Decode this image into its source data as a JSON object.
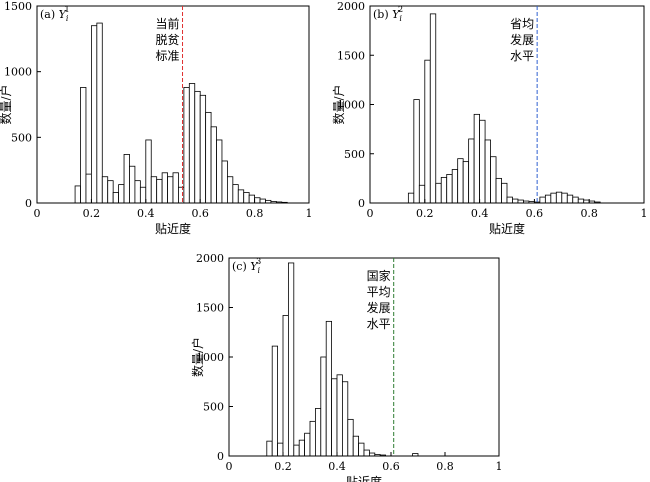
{
  "chart_data": [
    {
      "type": "bar",
      "panel": "(a)",
      "title": "Y_i^1",
      "title_var": "Y",
      "title_sub": "i",
      "title_sup": "1",
      "xlabel": "贴近度",
      "ylabel": "数量/户",
      "xlim": [
        0,
        1
      ],
      "ylim": [
        0,
        1500
      ],
      "xticks": [
        0,
        0.2,
        0.4,
        0.6,
        0.8,
        1
      ],
      "xtick_labels": [
        "0",
        "0.2",
        "0.4",
        "0.6",
        "0.8",
        "1"
      ],
      "yticks": [
        0,
        500,
        1000,
        1500
      ],
      "ytick_labels": [
        "0",
        "500",
        "1000",
        "1500"
      ],
      "bin_width": 0.02,
      "bins": [
        {
          "x": 0.15,
          "count": 130
        },
        {
          "x": 0.17,
          "count": 880
        },
        {
          "x": 0.19,
          "count": 220
        },
        {
          "x": 0.21,
          "count": 1350
        },
        {
          "x": 0.23,
          "count": 1370
        },
        {
          "x": 0.25,
          "count": 200
        },
        {
          "x": 0.27,
          "count": 170
        },
        {
          "x": 0.29,
          "count": 80
        },
        {
          "x": 0.31,
          "count": 140
        },
        {
          "x": 0.33,
          "count": 370
        },
        {
          "x": 0.35,
          "count": 280
        },
        {
          "x": 0.37,
          "count": 170
        },
        {
          "x": 0.39,
          "count": 120
        },
        {
          "x": 0.41,
          "count": 480
        },
        {
          "x": 0.43,
          "count": 200
        },
        {
          "x": 0.45,
          "count": 180
        },
        {
          "x": 0.47,
          "count": 230
        },
        {
          "x": 0.49,
          "count": 200
        },
        {
          "x": 0.51,
          "count": 230
        },
        {
          "x": 0.53,
          "count": 120
        },
        {
          "x": 0.55,
          "count": 880
        },
        {
          "x": 0.57,
          "count": 910
        },
        {
          "x": 0.59,
          "count": 850
        },
        {
          "x": 0.61,
          "count": 820
        },
        {
          "x": 0.63,
          "count": 690
        },
        {
          "x": 0.65,
          "count": 580
        },
        {
          "x": 0.67,
          "count": 480
        },
        {
          "x": 0.69,
          "count": 320
        },
        {
          "x": 0.71,
          "count": 200
        },
        {
          "x": 0.73,
          "count": 140
        },
        {
          "x": 0.75,
          "count": 100
        },
        {
          "x": 0.77,
          "count": 80
        },
        {
          "x": 0.79,
          "count": 60
        },
        {
          "x": 0.81,
          "count": 40
        },
        {
          "x": 0.83,
          "count": 30
        },
        {
          "x": 0.85,
          "count": 20
        },
        {
          "x": 0.87,
          "count": 12
        },
        {
          "x": 0.89,
          "count": 8
        },
        {
          "x": 0.91,
          "count": 5
        }
      ],
      "reference_line": {
        "x": 0.535,
        "color": "#e03030",
        "label_lines": [
          "当前",
          "脱贫",
          "标准"
        ]
      }
    },
    {
      "type": "bar",
      "panel": "(b)",
      "title": "Y_i^2",
      "title_var": "Y",
      "title_sub": "i",
      "title_sup": "2",
      "xlabel": "贴近度",
      "ylabel": "数量/户",
      "xlim": [
        0,
        1
      ],
      "ylim": [
        0,
        2000
      ],
      "xticks": [
        0,
        0.2,
        0.4,
        0.6,
        0.8,
        1
      ],
      "xtick_labels": [
        "0",
        "0.2",
        "0.4",
        "0.6",
        "0.8",
        "1"
      ],
      "yticks": [
        0,
        500,
        1000,
        1500,
        2000
      ],
      "ytick_labels": [
        "0",
        "500",
        "1000",
        "1500",
        "2000"
      ],
      "bin_width": 0.02,
      "bins": [
        {
          "x": 0.15,
          "count": 100
        },
        {
          "x": 0.17,
          "count": 1050
        },
        {
          "x": 0.19,
          "count": 180
        },
        {
          "x": 0.21,
          "count": 1450
        },
        {
          "x": 0.23,
          "count": 1920
        },
        {
          "x": 0.25,
          "count": 200
        },
        {
          "x": 0.27,
          "count": 260
        },
        {
          "x": 0.29,
          "count": 290
        },
        {
          "x": 0.31,
          "count": 340
        },
        {
          "x": 0.33,
          "count": 450
        },
        {
          "x": 0.35,
          "count": 420
        },
        {
          "x": 0.37,
          "count": 650
        },
        {
          "x": 0.39,
          "count": 900
        },
        {
          "x": 0.41,
          "count": 840
        },
        {
          "x": 0.43,
          "count": 640
        },
        {
          "x": 0.45,
          "count": 470
        },
        {
          "x": 0.47,
          "count": 250
        },
        {
          "x": 0.49,
          "count": 200
        },
        {
          "x": 0.51,
          "count": 60
        },
        {
          "x": 0.53,
          "count": 40
        },
        {
          "x": 0.55,
          "count": 30
        },
        {
          "x": 0.57,
          "count": 20
        },
        {
          "x": 0.59,
          "count": 15
        },
        {
          "x": 0.61,
          "count": 10
        },
        {
          "x": 0.63,
          "count": 60
        },
        {
          "x": 0.65,
          "count": 80
        },
        {
          "x": 0.67,
          "count": 100
        },
        {
          "x": 0.69,
          "count": 110
        },
        {
          "x": 0.71,
          "count": 100
        },
        {
          "x": 0.73,
          "count": 80
        },
        {
          "x": 0.75,
          "count": 60
        },
        {
          "x": 0.77,
          "count": 40
        },
        {
          "x": 0.79,
          "count": 30
        },
        {
          "x": 0.81,
          "count": 20
        },
        {
          "x": 0.83,
          "count": 10
        }
      ],
      "reference_line": {
        "x": 0.61,
        "color": "#3060d0",
        "label_lines": [
          "省均",
          "发展",
          "水平"
        ]
      }
    },
    {
      "type": "bar",
      "panel": "(c)",
      "title": "Y_i^3",
      "title_var": "Y",
      "title_sub": "i",
      "title_sup": "3",
      "xlabel": "贴近度",
      "ylabel": "数量/户",
      "xlim": [
        0,
        1
      ],
      "ylim": [
        0,
        2000
      ],
      "xticks": [
        0,
        0.2,
        0.4,
        0.6,
        0.8,
        1
      ],
      "xtick_labels": [
        "0",
        "0.2",
        "0.4",
        "0.6",
        "0.8",
        "1"
      ],
      "yticks": [
        0,
        500,
        1000,
        1500,
        2000
      ],
      "ytick_labels": [
        "0",
        "500",
        "1000",
        "1500",
        "2000"
      ],
      "bin_width": 0.02,
      "bins": [
        {
          "x": 0.15,
          "count": 150
        },
        {
          "x": 0.17,
          "count": 1110
        },
        {
          "x": 0.19,
          "count": 130
        },
        {
          "x": 0.21,
          "count": 1420
        },
        {
          "x": 0.23,
          "count": 1950
        },
        {
          "x": 0.25,
          "count": 110
        },
        {
          "x": 0.27,
          "count": 160
        },
        {
          "x": 0.29,
          "count": 230
        },
        {
          "x": 0.31,
          "count": 350
        },
        {
          "x": 0.33,
          "count": 480
        },
        {
          "x": 0.35,
          "count": 1000
        },
        {
          "x": 0.37,
          "count": 1360
        },
        {
          "x": 0.39,
          "count": 780
        },
        {
          "x": 0.41,
          "count": 820
        },
        {
          "x": 0.43,
          "count": 750
        },
        {
          "x": 0.45,
          "count": 370
        },
        {
          "x": 0.47,
          "count": 200
        },
        {
          "x": 0.49,
          "count": 130
        },
        {
          "x": 0.51,
          "count": 60
        },
        {
          "x": 0.53,
          "count": 30
        },
        {
          "x": 0.55,
          "count": 15
        },
        {
          "x": 0.57,
          "count": 10
        },
        {
          "x": 0.69,
          "count": 25
        }
      ],
      "reference_line": {
        "x": 0.61,
        "color": "#2e7d32",
        "label_lines": [
          "国家",
          "平均",
          "发展",
          "水平"
        ]
      }
    }
  ]
}
